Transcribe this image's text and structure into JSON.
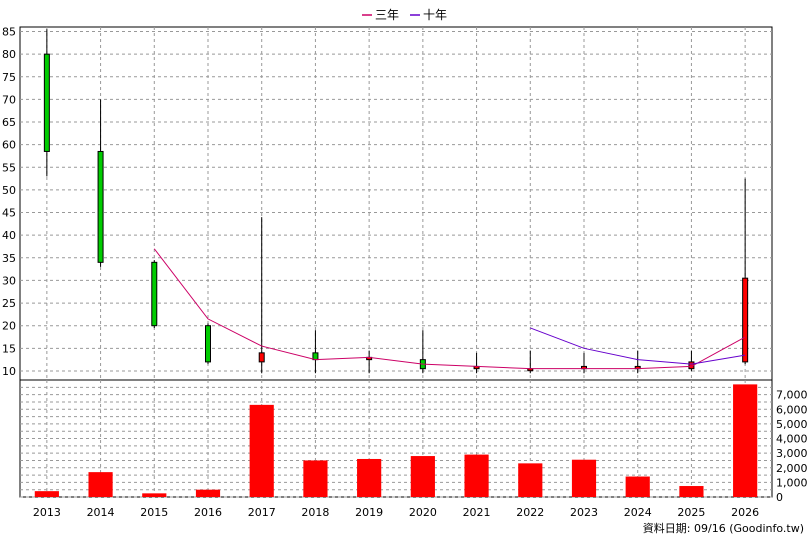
{
  "legend": [
    {
      "label": "三年",
      "color": "#cc0066"
    },
    {
      "label": "十年",
      "color": "#6600cc"
    }
  ],
  "footer": "資料日期: 09/16 (Goodinfo.tw)",
  "colors": {
    "up": "#ff0000",
    "down": "#00cc00",
    "volume": "#ff0000",
    "grid": "#999999",
    "line3": "#cc0066",
    "line10": "#6600cc"
  },
  "chart_data": [
    {
      "type": "candlestick",
      "categories": [
        "2013",
        "2014",
        "2015",
        "2016",
        "2017",
        "2018",
        "2019",
        "2020",
        "2021",
        "2022",
        "2023",
        "2024",
        "2025",
        "2026"
      ],
      "ylim": [
        8,
        86
      ],
      "yticks": [
        10,
        15,
        20,
        25,
        30,
        35,
        40,
        45,
        50,
        55,
        60,
        65,
        70,
        75,
        80,
        85
      ],
      "grid": true,
      "ohlc": [
        {
          "open": 80,
          "high": 85.5,
          "low": 53,
          "close": 58.5
        },
        {
          "open": 58.5,
          "high": 70,
          "low": 33,
          "close": 34
        },
        {
          "open": 34,
          "high": 34.5,
          "low": 19.5,
          "close": 20
        },
        {
          "open": 20,
          "high": 20.5,
          "low": 11.5,
          "close": 12
        },
        {
          "open": 12,
          "high": 44,
          "low": 9.5,
          "close": 14
        },
        {
          "open": 14,
          "high": 19,
          "low": 9.5,
          "close": 12.5
        },
        {
          "open": 12.5,
          "high": 14.5,
          "low": 9.5,
          "close": 13
        },
        {
          "open": 12.5,
          "high": 19,
          "low": 9.5,
          "close": 10.5
        },
        {
          "open": 10.5,
          "high": 14,
          "low": 9.5,
          "close": 11
        },
        {
          "open": 10.5,
          "high": 14.5,
          "low": 9.5,
          "close": 10.5
        },
        {
          "open": 10.5,
          "high": 14,
          "low": 9.5,
          "close": 11
        },
        {
          "open": 10.5,
          "high": 14.5,
          "low": 9.5,
          "close": 11
        },
        {
          "open": 10.5,
          "high": 14.5,
          "low": 10,
          "close": 12
        },
        {
          "open": 12,
          "high": 52.5,
          "low": 11.5,
          "close": 30.5
        }
      ],
      "series": [
        {
          "name": "三年",
          "values": [
            null,
            null,
            37,
            21.5,
            15.5,
            12.5,
            13,
            11.5,
            11,
            10.5,
            10.5,
            10.5,
            11,
            17.5
          ]
        },
        {
          "name": "十年",
          "values": [
            null,
            null,
            null,
            null,
            null,
            null,
            null,
            null,
            null,
            19.5,
            15,
            12.5,
            11.5,
            13.5
          ]
        }
      ]
    },
    {
      "type": "bar",
      "categories": [
        "2013",
        "2014",
        "2015",
        "2016",
        "2017",
        "2018",
        "2019",
        "2020",
        "2021",
        "2022",
        "2023",
        "2024",
        "2025",
        "2026"
      ],
      "values": [
        400,
        1700,
        250,
        500,
        6300,
        2500,
        2600,
        2800,
        2900,
        2300,
        2550,
        1400,
        750,
        7700
      ],
      "ylim": [
        0,
        8000
      ],
      "yticks": [
        0,
        1000,
        2000,
        3000,
        4000,
        5000,
        6000,
        7000
      ],
      "ytick_labels": [
        "0",
        "1,000",
        "2,000",
        "3,000",
        "4,000",
        "5,000",
        "6,000",
        "7,000"
      ],
      "grid": true
    }
  ]
}
